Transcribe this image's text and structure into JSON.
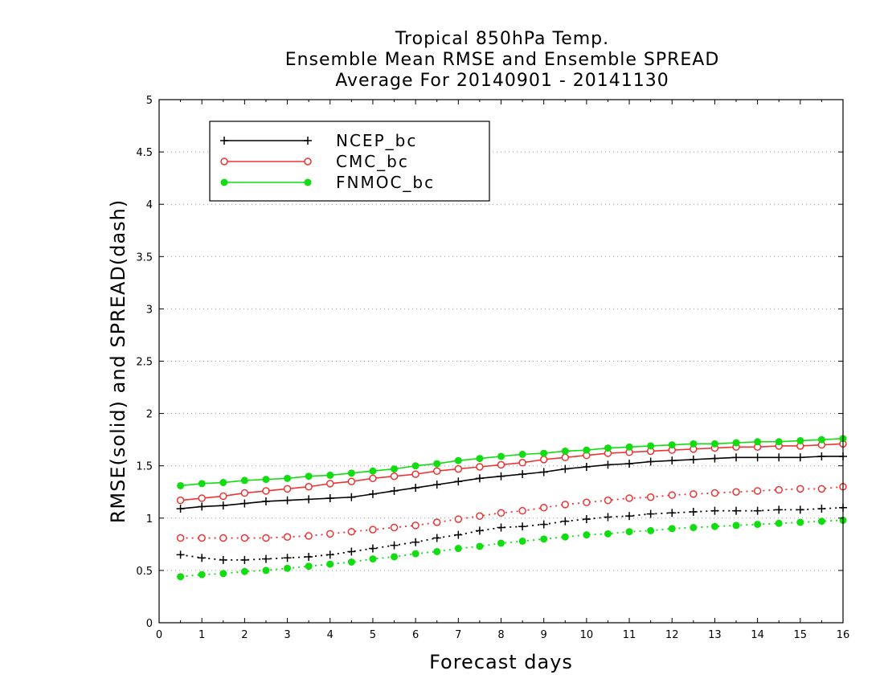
{
  "chart_data": {
    "type": "line",
    "title": [
      "Tropical 850hPa Temp.",
      "Ensemble Mean RMSE and Ensemble SPREAD",
      "Average For 20140901 - 20141130"
    ],
    "xlabel": "Forecast days",
    "ylabel": "RMSE(solid) and SPREAD(dash)",
    "xlim": [
      0,
      16
    ],
    "ylim": [
      0,
      5
    ],
    "xticks": [
      0,
      1,
      2,
      3,
      4,
      5,
      6,
      7,
      8,
      9,
      10,
      11,
      12,
      13,
      14,
      15,
      16
    ],
    "yticks": [
      0,
      0.5,
      1,
      1.5,
      2,
      2.5,
      3,
      3.5,
      4,
      4.5,
      5
    ],
    "grid": "dotted horizontal",
    "legend_position": "top-left",
    "x": [
      0.5,
      1,
      1.5,
      2,
      2.5,
      3,
      3.5,
      4,
      4.5,
      5,
      5.5,
      6,
      6.5,
      7,
      7.5,
      8,
      8.5,
      9,
      9.5,
      10,
      10.5,
      11,
      11.5,
      12,
      12.5,
      13,
      13.5,
      14,
      14.5,
      15,
      15.5,
      16
    ],
    "series": [
      {
        "name": "NCEP_bc",
        "color": "#000000",
        "marker": "plus",
        "style": "solid",
        "values": [
          1.09,
          1.11,
          1.12,
          1.14,
          1.16,
          1.17,
          1.18,
          1.19,
          1.2,
          1.23,
          1.26,
          1.29,
          1.32,
          1.35,
          1.38,
          1.4,
          1.42,
          1.44,
          1.47,
          1.49,
          1.51,
          1.52,
          1.54,
          1.55,
          1.56,
          1.57,
          1.58,
          1.58,
          1.58,
          1.58,
          1.59,
          1.59
        ]
      },
      {
        "name": "CMC_bc",
        "color": "#ee3333",
        "marker": "circle-open",
        "style": "solid",
        "values": [
          1.17,
          1.19,
          1.21,
          1.24,
          1.26,
          1.28,
          1.3,
          1.33,
          1.35,
          1.38,
          1.4,
          1.42,
          1.45,
          1.47,
          1.49,
          1.51,
          1.53,
          1.56,
          1.58,
          1.6,
          1.62,
          1.63,
          1.64,
          1.65,
          1.66,
          1.67,
          1.68,
          1.68,
          1.69,
          1.69,
          1.7,
          1.71
        ]
      },
      {
        "name": "FNMOC_bc",
        "color": "#11dd11",
        "marker": "circle-filled",
        "style": "solid",
        "values": [
          1.31,
          1.33,
          1.34,
          1.36,
          1.37,
          1.38,
          1.4,
          1.41,
          1.43,
          1.45,
          1.47,
          1.5,
          1.52,
          1.55,
          1.57,
          1.59,
          1.61,
          1.62,
          1.64,
          1.65,
          1.67,
          1.68,
          1.69,
          1.7,
          1.71,
          1.71,
          1.72,
          1.73,
          1.73,
          1.74,
          1.75,
          1.76
        ]
      },
      {
        "name": "NCEP_bc spread",
        "color": "#000000",
        "marker": "plus",
        "style": "dash",
        "values": [
          0.65,
          0.62,
          0.6,
          0.6,
          0.61,
          0.62,
          0.63,
          0.65,
          0.68,
          0.71,
          0.74,
          0.77,
          0.81,
          0.84,
          0.88,
          0.91,
          0.92,
          0.94,
          0.97,
          0.99,
          1.01,
          1.02,
          1.04,
          1.05,
          1.06,
          1.07,
          1.07,
          1.07,
          1.08,
          1.08,
          1.09,
          1.1
        ]
      },
      {
        "name": "CMC_bc spread",
        "color": "#ee3333",
        "marker": "circle-open",
        "style": "dash",
        "values": [
          0.81,
          0.81,
          0.81,
          0.81,
          0.81,
          0.82,
          0.83,
          0.85,
          0.87,
          0.89,
          0.91,
          0.93,
          0.96,
          0.99,
          1.02,
          1.05,
          1.07,
          1.1,
          1.13,
          1.15,
          1.17,
          1.19,
          1.2,
          1.22,
          1.23,
          1.24,
          1.25,
          1.26,
          1.27,
          1.28,
          1.28,
          1.3
        ]
      },
      {
        "name": "FNMOC_bc spread",
        "color": "#11dd11",
        "marker": "circle-filled",
        "style": "dash",
        "values": [
          0.44,
          0.46,
          0.47,
          0.49,
          0.5,
          0.52,
          0.54,
          0.56,
          0.58,
          0.61,
          0.63,
          0.66,
          0.68,
          0.71,
          0.73,
          0.76,
          0.78,
          0.8,
          0.82,
          0.84,
          0.85,
          0.87,
          0.88,
          0.9,
          0.91,
          0.92,
          0.93,
          0.94,
          0.95,
          0.96,
          0.97,
          0.98
        ]
      }
    ]
  }
}
